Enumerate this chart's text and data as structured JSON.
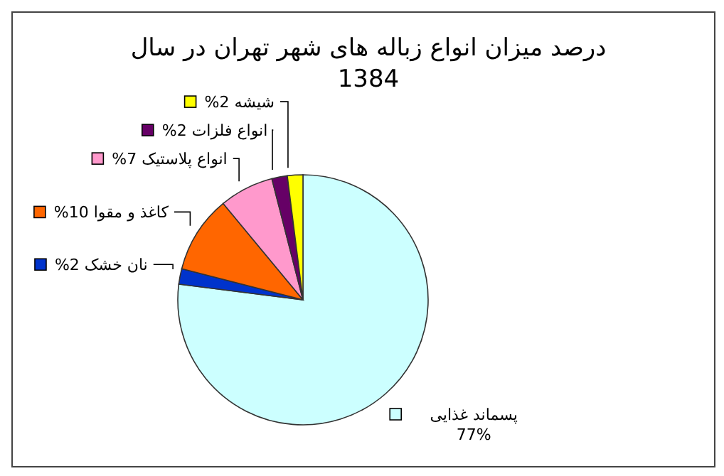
{
  "chart_data": {
    "type": "pie",
    "title": "درصد میزان انواع زباله های شهر تهران در سال 1384",
    "categories": [
      "پسماند غذایی",
      "نان خشک",
      "کاغذ و مقوا",
      "انواع پلاستیک",
      "انواع فلزات",
      "شیشه"
    ],
    "values": [
      77,
      2,
      10,
      7,
      2,
      2
    ],
    "value_labels": [
      "77%",
      "2%",
      "10%",
      "7%",
      "2%",
      "2%"
    ],
    "colors": [
      "#ccffff",
      "#0033cc",
      "#ff6600",
      "#ff99cc",
      "#660066",
      "#ffff00"
    ],
    "legend": "left"
  }
}
